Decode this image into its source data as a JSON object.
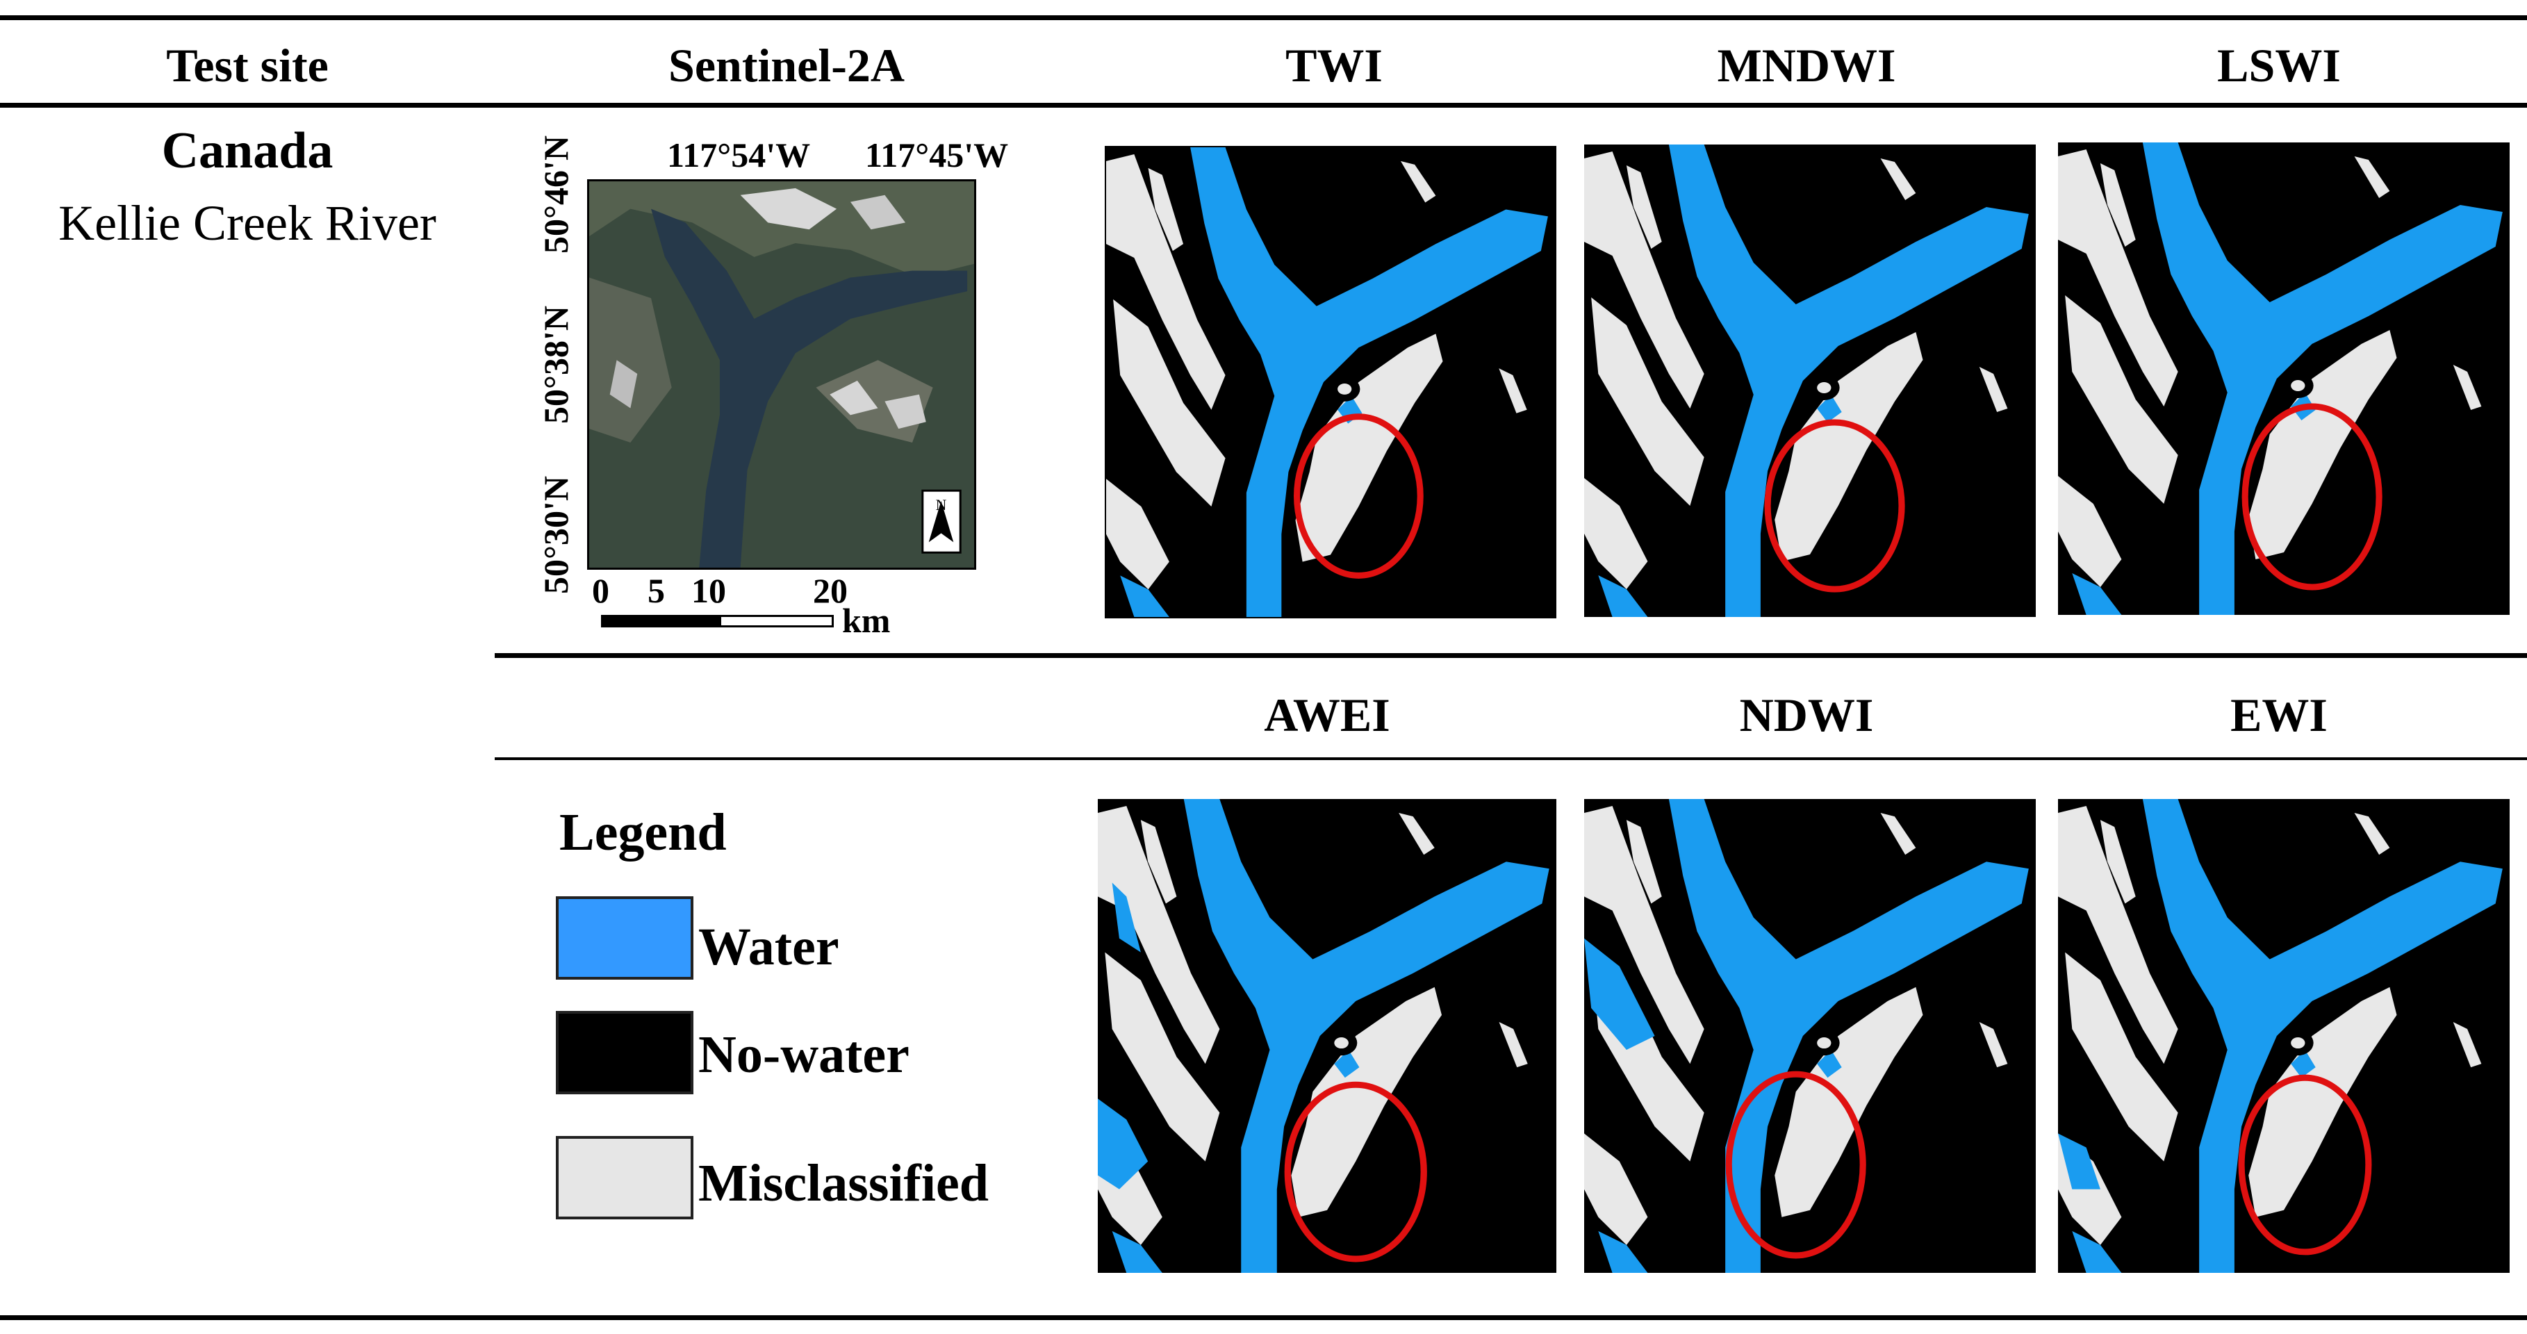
{
  "table": {
    "headers": {
      "test_site": "Test site",
      "sentinel": "Sentinel-2A",
      "twi": "TWI",
      "mndwi": "MNDWI",
      "lswi": "LSWI",
      "awei": "AWEI",
      "ndwi": "NDWI",
      "ewi": "EWI"
    },
    "site": {
      "country": "Canada",
      "name": "Kellie Creek River"
    }
  },
  "sentinel_map": {
    "lon_labels": [
      "117°54'W",
      "117°45'W"
    ],
    "lat_labels": [
      "50°46'N",
      "50°38'N",
      "50°30'N"
    ],
    "scale_ticks": [
      "0",
      "5",
      "10",
      "20"
    ],
    "scale_unit": "km",
    "north_letter": "N"
  },
  "legend": {
    "title": "Legend",
    "items": [
      {
        "label": "Water",
        "color": "#3399ff"
      },
      {
        "label": "No-water",
        "color": "#000000"
      },
      {
        "label": "Misclassified",
        "color": "#e6e6e6"
      }
    ]
  },
  "colors": {
    "water": "#1a9cf0",
    "no_water": "#000000",
    "misclassified": "#e8e8e8",
    "highlight_circle": "#e01010"
  }
}
